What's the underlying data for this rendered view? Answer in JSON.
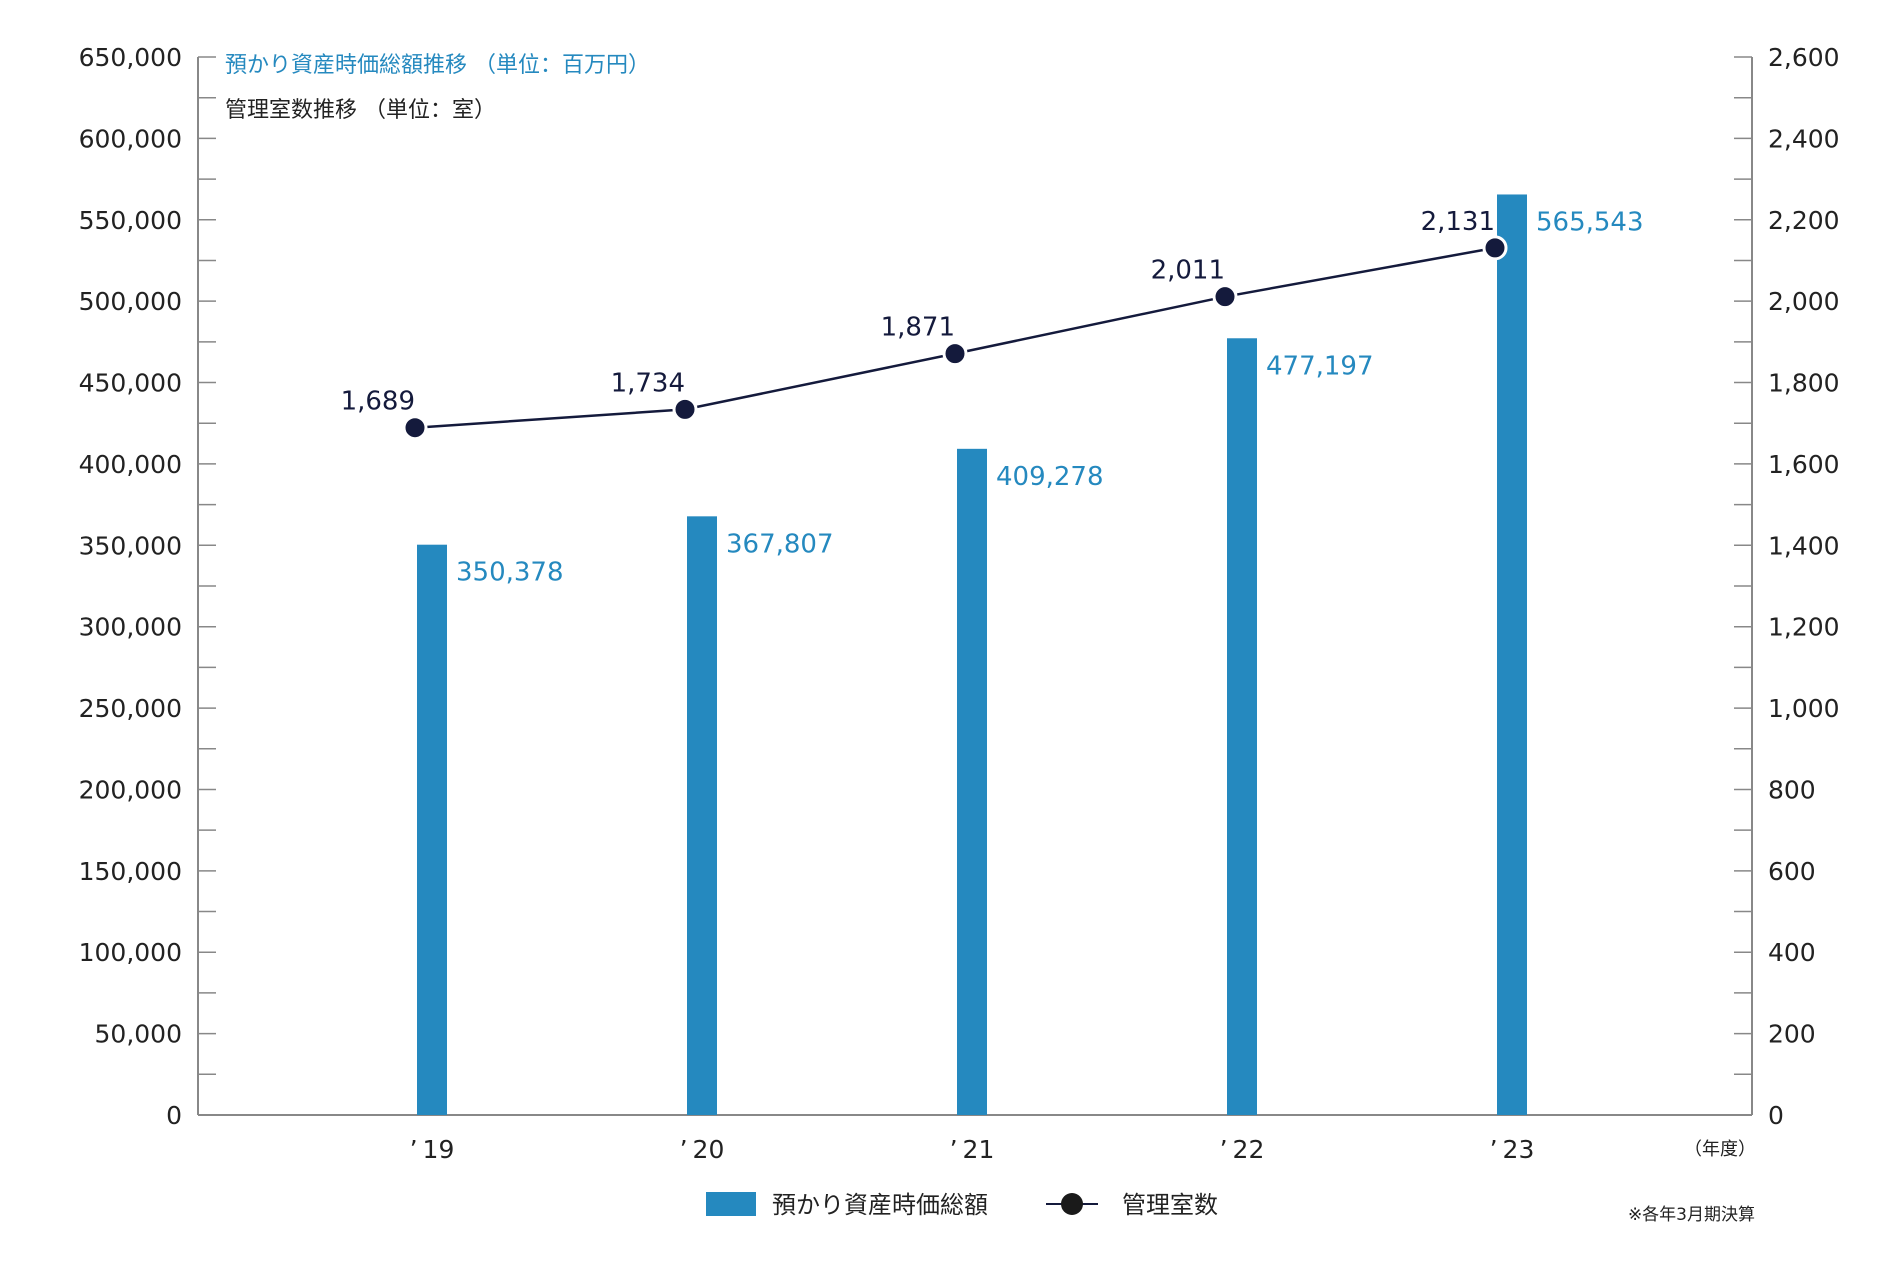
{
  "chart_data": {
    "type": "bar",
    "title_bar": "預かり資産時価総額推移 （単位：百万円）",
    "title_line": "管理室数推移 （単位：室）",
    "categories": [
      "’ 19",
      "’ 20",
      "’ 21",
      "’ 22",
      "’ 23"
    ],
    "xlabel": "（年度）",
    "series": [
      {
        "name": "預かり資産時価総額",
        "type": "bar",
        "axis": "left",
        "color": "#2589bf",
        "values": [
          350378,
          367807,
          409278,
          477197,
          565543
        ],
        "labels": [
          "350,378",
          "367,807",
          "409,278",
          "477,197",
          "565,543"
        ]
      },
      {
        "name": "管理室数",
        "type": "line",
        "axis": "right",
        "color": "#141a3c",
        "values": [
          1689,
          1734,
          1871,
          2011,
          2131
        ],
        "labels": [
          "1,689",
          "1,734",
          "1,871",
          "2,011",
          "2,131"
        ]
      }
    ],
    "y_left": {
      "lim": [
        0,
        650000
      ],
      "ticks": [
        0,
        50000,
        100000,
        150000,
        200000,
        250000,
        300000,
        350000,
        400000,
        450000,
        500000,
        550000,
        600000,
        650000
      ],
      "tick_labels": [
        "0",
        "50,000",
        "100,000",
        "150,000",
        "200,000",
        "250,000",
        "300,000",
        "350,000",
        "400,000",
        "450,000",
        "500,000",
        "550,000",
        "600,000",
        "650,000"
      ]
    },
    "y_right": {
      "lim": [
        0,
        2600
      ],
      "ticks": [
        0,
        200,
        400,
        600,
        800,
        1000,
        1200,
        1400,
        1600,
        1800,
        2000,
        2200,
        2400,
        2600
      ],
      "tick_labels": [
        "0",
        "200",
        "400",
        "600",
        "800",
        "1,000",
        "1,200",
        "1,400",
        "1,600",
        "1,800",
        "2,000",
        "2,200",
        "2,400",
        "2,600"
      ]
    },
    "legend": {
      "position": "bottom-center",
      "items": [
        "預かり資産時価総額",
        "管理室数"
      ]
    },
    "footnote": "※各年3月期決算",
    "grid": false
  }
}
